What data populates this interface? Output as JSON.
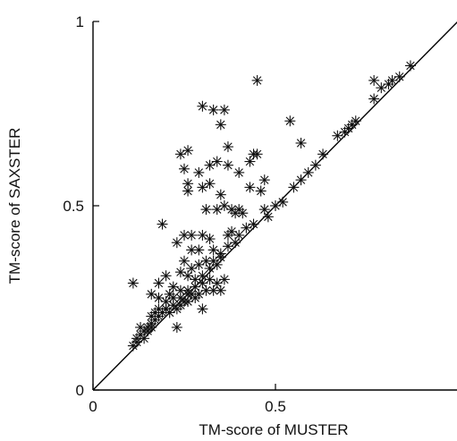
{
  "chart_data": {
    "type": "scatter",
    "title": "",
    "xlabel": "TM-score of MUSTER",
    "ylabel": "TM-score of SAXSTER",
    "xlim": [
      0,
      1
    ],
    "ylim": [
      0,
      1
    ],
    "xticks": [
      {
        "value": 0,
        "label": "0"
      },
      {
        "value": 0.5,
        "label": "0.5"
      }
    ],
    "yticks": [
      {
        "value": 0,
        "label": "0"
      },
      {
        "value": 0.5,
        "label": "0.5"
      },
      {
        "value": 1,
        "label": "1"
      }
    ],
    "diagonal_line": true,
    "marker": "asterisk",
    "grid": false,
    "series": [
      {
        "points": [
          [
            0.45,
            0.84
          ],
          [
            0.3,
            0.77
          ],
          [
            0.33,
            0.76
          ],
          [
            0.36,
            0.76
          ],
          [
            0.35,
            0.72
          ],
          [
            0.24,
            0.64
          ],
          [
            0.26,
            0.65
          ],
          [
            0.44,
            0.64
          ],
          [
            0.45,
            0.64
          ],
          [
            0.37,
            0.66
          ],
          [
            0.43,
            0.62
          ],
          [
            0.29,
            0.59
          ],
          [
            0.32,
            0.61
          ],
          [
            0.34,
            0.62
          ],
          [
            0.37,
            0.61
          ],
          [
            0.4,
            0.59
          ],
          [
            0.25,
            0.6
          ],
          [
            0.54,
            0.73
          ],
          [
            0.57,
            0.67
          ],
          [
            0.26,
            0.56
          ],
          [
            0.26,
            0.54
          ],
          [
            0.3,
            0.55
          ],
          [
            0.32,
            0.56
          ],
          [
            0.35,
            0.53
          ],
          [
            0.43,
            0.55
          ],
          [
            0.47,
            0.57
          ],
          [
            0.46,
            0.54
          ],
          [
            0.36,
            0.5
          ],
          [
            0.38,
            0.49
          ],
          [
            0.4,
            0.49
          ],
          [
            0.31,
            0.49
          ],
          [
            0.34,
            0.49
          ],
          [
            0.39,
            0.48
          ],
          [
            0.41,
            0.48
          ],
          [
            0.47,
            0.49
          ],
          [
            0.5,
            0.5
          ],
          [
            0.19,
            0.45
          ],
          [
            0.25,
            0.42
          ],
          [
            0.27,
            0.42
          ],
          [
            0.3,
            0.42
          ],
          [
            0.32,
            0.41
          ],
          [
            0.37,
            0.42
          ],
          [
            0.38,
            0.43
          ],
          [
            0.4,
            0.42
          ],
          [
            0.37,
            0.39
          ],
          [
            0.39,
            0.4
          ],
          [
            0.23,
            0.4
          ],
          [
            0.27,
            0.38
          ],
          [
            0.29,
            0.38
          ],
          [
            0.33,
            0.38
          ],
          [
            0.35,
            0.37
          ],
          [
            0.42,
            0.44
          ],
          [
            0.44,
            0.45
          ],
          [
            0.48,
            0.47
          ],
          [
            0.52,
            0.51
          ],
          [
            0.55,
            0.55
          ],
          [
            0.57,
            0.57
          ],
          [
            0.59,
            0.59
          ],
          [
            0.61,
            0.61
          ],
          [
            0.63,
            0.64
          ],
          [
            0.67,
            0.69
          ],
          [
            0.69,
            0.7
          ],
          [
            0.7,
            0.71
          ],
          [
            0.71,
            0.72
          ],
          [
            0.72,
            0.73
          ],
          [
            0.77,
            0.79
          ],
          [
            0.79,
            0.82
          ],
          [
            0.81,
            0.83
          ],
          [
            0.82,
            0.84
          ],
          [
            0.84,
            0.85
          ],
          [
            0.87,
            0.88
          ],
          [
            0.77,
            0.84
          ],
          [
            0.25,
            0.35
          ],
          [
            0.27,
            0.33
          ],
          [
            0.29,
            0.34
          ],
          [
            0.31,
            0.35
          ],
          [
            0.33,
            0.35
          ],
          [
            0.35,
            0.36
          ],
          [
            0.2,
            0.31
          ],
          [
            0.24,
            0.32
          ],
          [
            0.26,
            0.31
          ],
          [
            0.28,
            0.3
          ],
          [
            0.3,
            0.31
          ],
          [
            0.32,
            0.33
          ],
          [
            0.34,
            0.34
          ],
          [
            0.11,
            0.29
          ],
          [
            0.18,
            0.29
          ],
          [
            0.22,
            0.28
          ],
          [
            0.24,
            0.27
          ],
          [
            0.26,
            0.27
          ],
          [
            0.28,
            0.28
          ],
          [
            0.3,
            0.29
          ],
          [
            0.32,
            0.3
          ],
          [
            0.16,
            0.26
          ],
          [
            0.18,
            0.25
          ],
          [
            0.2,
            0.24
          ],
          [
            0.22,
            0.25
          ],
          [
            0.24,
            0.25
          ],
          [
            0.26,
            0.26
          ],
          [
            0.18,
            0.22
          ],
          [
            0.2,
            0.22
          ],
          [
            0.22,
            0.23
          ],
          [
            0.24,
            0.23
          ],
          [
            0.26,
            0.24
          ],
          [
            0.28,
            0.25
          ],
          [
            0.34,
            0.29
          ],
          [
            0.36,
            0.3
          ],
          [
            0.13,
            0.17
          ],
          [
            0.14,
            0.16
          ],
          [
            0.15,
            0.17
          ],
          [
            0.16,
            0.18
          ],
          [
            0.17,
            0.19
          ],
          [
            0.18,
            0.2
          ],
          [
            0.19,
            0.21
          ],
          [
            0.2,
            0.22
          ],
          [
            0.21,
            0.21
          ],
          [
            0.23,
            0.17
          ],
          [
            0.3,
            0.22
          ],
          [
            0.12,
            0.13
          ],
          [
            0.13,
            0.15
          ],
          [
            0.14,
            0.14
          ],
          [
            0.15,
            0.16
          ],
          [
            0.16,
            0.17
          ],
          [
            0.11,
            0.12
          ],
          [
            0.12,
            0.14
          ],
          [
            0.33,
            0.27
          ],
          [
            0.35,
            0.27
          ],
          [
            0.16,
            0.2
          ],
          [
            0.17,
            0.21
          ],
          [
            0.21,
            0.26
          ],
          [
            0.29,
            0.26
          ],
          [
            0.31,
            0.27
          ],
          [
            0.23,
            0.22
          ],
          [
            0.25,
            0.24
          ],
          [
            0.27,
            0.26
          ]
        ]
      }
    ]
  }
}
